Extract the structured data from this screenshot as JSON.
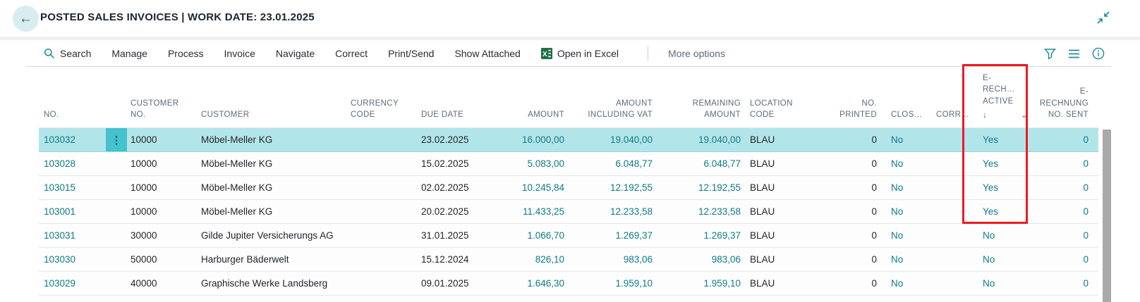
{
  "page": {
    "title": "POSTED SALES INVOICES | WORK DATE: 23.01.2025"
  },
  "icons": {
    "back": "←",
    "row_menu": "⋮",
    "sort_descending": "↓",
    "filter_chevron": "⌄"
  },
  "toolbar": {
    "items": [
      "Search",
      "Manage",
      "Process",
      "Invoice",
      "Navigate",
      "Correct",
      "Print/Send",
      "Show Attached",
      "Open in Excel"
    ],
    "more_options": "More options"
  },
  "table": {
    "headers": {
      "no": "NO.",
      "customer_no": "CUSTOMER\nNO.",
      "customer": "CUSTOMER",
      "currency_code": "CURRENCY\nCODE",
      "due_date": "DUE DATE",
      "amount": "AMOUNT",
      "amount_including_vat": "AMOUNT\nINCLUDING VAT",
      "remaining_amount": "REMAINING\nAMOUNT",
      "location_code": "LOCATION\nCODE",
      "no_printed": "NO.\nPRINTED",
      "closed": "CLOS…",
      "corrective": "CORR…",
      "erechnung_active": "E-\nRECH…\nACTIVE",
      "erechnung_no_sent": "E-\nRECHNUNG\nNO. SENT"
    },
    "rows": [
      {
        "selected": true,
        "no": "103032",
        "customer_no": "10000",
        "customer": "Möbel-Meller KG",
        "currency_code": "",
        "due_date": "23.02.2025",
        "amount": "16.000,00",
        "amount_including_vat": "19.040,00",
        "remaining_amount": "19.040,00",
        "location_code": "BLAU",
        "no_printed": "0",
        "closed": "No",
        "corrective": "",
        "erechnung_active": "Yes",
        "erechnung_no_sent": "0"
      },
      {
        "selected": false,
        "no": "103028",
        "customer_no": "10000",
        "customer": "Möbel-Meller KG",
        "currency_code": "",
        "due_date": "15.02.2025",
        "amount": "5.083,00",
        "amount_including_vat": "6.048,77",
        "remaining_amount": "6.048,77",
        "location_code": "BLAU",
        "no_printed": "0",
        "closed": "No",
        "corrective": "",
        "erechnung_active": "Yes",
        "erechnung_no_sent": "0"
      },
      {
        "selected": false,
        "no": "103015",
        "customer_no": "10000",
        "customer": "Möbel-Meller KG",
        "currency_code": "",
        "due_date": "02.02.2025",
        "amount": "10.245,84",
        "amount_including_vat": "12.192,55",
        "remaining_amount": "12.192,55",
        "location_code": "BLAU",
        "no_printed": "0",
        "closed": "No",
        "corrective": "",
        "erechnung_active": "Yes",
        "erechnung_no_sent": "0"
      },
      {
        "selected": false,
        "no": "103001",
        "customer_no": "10000",
        "customer": "Möbel-Meller KG",
        "currency_code": "",
        "due_date": "20.02.2025",
        "amount": "11.433,25",
        "amount_including_vat": "12.233,58",
        "remaining_amount": "12.233,58",
        "location_code": "BLAU",
        "no_printed": "0",
        "closed": "No",
        "corrective": "",
        "erechnung_active": "Yes",
        "erechnung_no_sent": "0"
      },
      {
        "selected": false,
        "no": "103031",
        "customer_no": "30000",
        "customer": "Gilde Jupiter Versicherungs AG",
        "currency_code": "",
        "due_date": "31.01.2025",
        "amount": "1.066,70",
        "amount_including_vat": "1.269,37",
        "remaining_amount": "1.269,37",
        "location_code": "BLAU",
        "no_printed": "0",
        "closed": "No",
        "corrective": "",
        "erechnung_active": "No",
        "erechnung_no_sent": "0"
      },
      {
        "selected": false,
        "no": "103030",
        "customer_no": "50000",
        "customer": "Harburger Bäderwelt",
        "currency_code": "",
        "due_date": "15.12.2024",
        "amount": "826,10",
        "amount_including_vat": "983,06",
        "remaining_amount": "983,06",
        "location_code": "BLAU",
        "no_printed": "0",
        "closed": "No",
        "corrective": "",
        "erechnung_active": "No",
        "erechnung_no_sent": "0"
      },
      {
        "selected": false,
        "no": "103029",
        "customer_no": "40000",
        "customer": "Graphische Werke Landsberg",
        "currency_code": "",
        "due_date": "09.01.2025",
        "amount": "1.646,30",
        "amount_including_vat": "1.959,10",
        "remaining_amount": "1.959,10",
        "location_code": "BLAU",
        "no_printed": "0",
        "closed": "No",
        "corrective": "",
        "erechnung_active": "No",
        "erechnung_no_sent": "0"
      }
    ]
  },
  "colors": {
    "accent_teal": "#1b8a99",
    "link_teal": "#0e7a89",
    "selected_row": "#b2e5ea",
    "annotation_red": "#ea1b22",
    "excel_green": "#1d7044"
  }
}
